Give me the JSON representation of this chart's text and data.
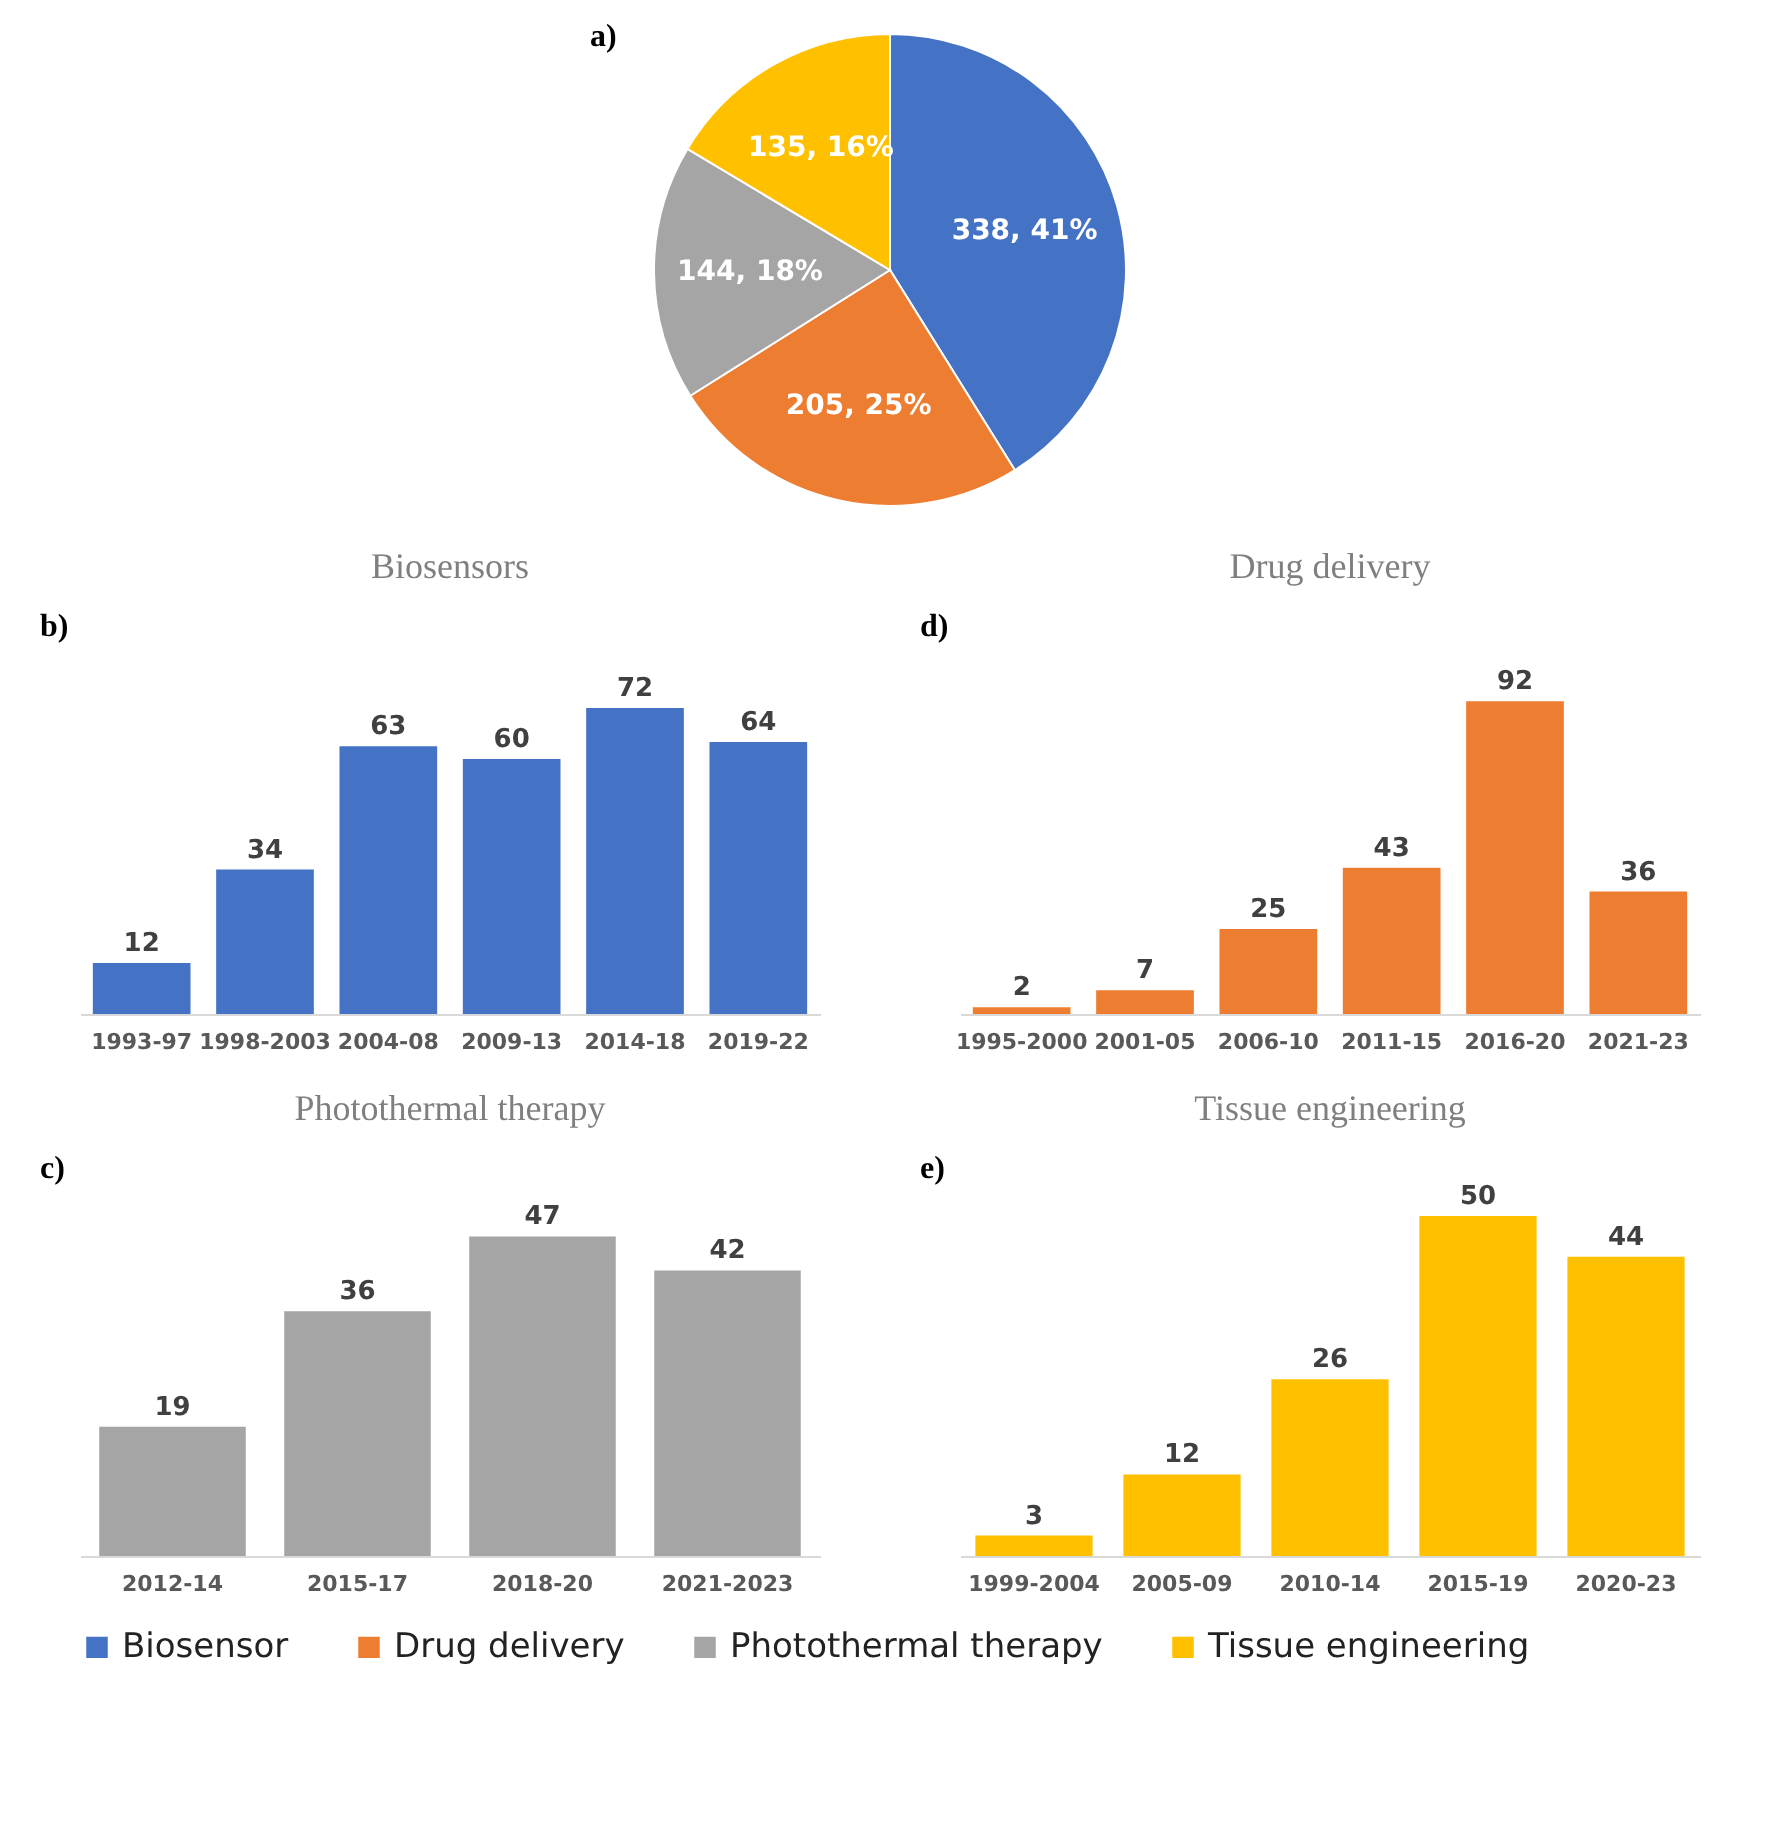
{
  "chart_data": [
    {
      "type": "pie",
      "annotations": [
        "a)"
      ],
      "categories": [
        "Biosensor",
        "Drug delivery",
        "Photothermal therapy",
        "Tissue engineering"
      ],
      "values": [
        338,
        205,
        144,
        135
      ],
      "colors": [
        "#4472c4",
        "#ed7d31",
        "#a5a5a5",
        "#ffc000"
      ],
      "value_labels": [
        "338, 41%",
        "205, 25%",
        "144, 18%",
        "135, 16%"
      ],
      "legend": "bottom"
    },
    {
      "type": "bar",
      "title": "Biosensors",
      "annotations": [
        "b)"
      ],
      "categories": [
        "1993-97",
        "1998-2003",
        "2004-08",
        "2009-13",
        "2014-18",
        "2019-22"
      ],
      "series": [
        {
          "color": "#4472c4",
          "values": [
            12,
            34,
            63,
            60,
            72,
            64
          ]
        }
      ],
      "data_labels": true,
      "tick_labels": "x"
    },
    {
      "type": "bar",
      "title": "Drug delivery",
      "annotations": [
        "d)"
      ],
      "categories": [
        "1995-2000",
        "2001-05",
        "2006-10",
        "2011-15",
        "2016-20",
        "2021-23"
      ],
      "series": [
        {
          "color": "#ed7d31",
          "values": [
            2,
            7,
            25,
            43,
            92,
            36
          ]
        }
      ],
      "data_labels": true,
      "tick_labels": "x"
    },
    {
      "type": "bar",
      "title": "Photothermal therapy",
      "annotations": [
        "c)"
      ],
      "categories": [
        "2012-14",
        "2015-17",
        "2018-20",
        "2021-2023"
      ],
      "series": [
        {
          "color": "#a5a5a5",
          "values": [
            19,
            36,
            47,
            42
          ]
        }
      ],
      "data_labels": true,
      "tick_labels": "x"
    },
    {
      "type": "bar",
      "title": "Tissue engineering",
      "annotations": [
        "e)"
      ],
      "categories": [
        "1999-2004",
        "2005-09",
        "2010-14",
        "2015-19",
        "2020-23"
      ],
      "series": [
        {
          "color": "#ffc000",
          "values": [
            3,
            12,
            26,
            50,
            44
          ]
        }
      ],
      "data_labels": true,
      "tick_labels": "x"
    }
  ]
}
